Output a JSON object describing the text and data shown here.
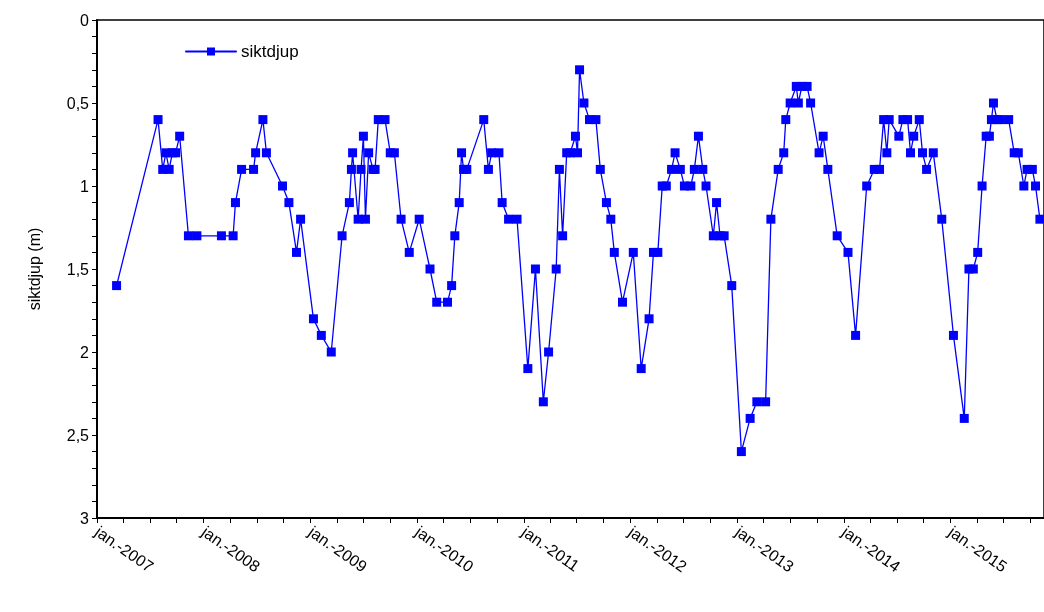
{
  "chart_data": {
    "type": "line",
    "ylabel": "siktdjup (m)",
    "marker": "square",
    "line_style": "solid",
    "grid": false,
    "legend": "top left",
    "xlim": [
      "2007-01-01",
      "2015-11-17"
    ],
    "ylim": [
      3,
      0
    ],
    "xticks": [
      {
        "value": "2007-01-01",
        "label": "jan.-2007"
      },
      {
        "value": "2007-04-01",
        "label": null
      },
      {
        "value": "2007-07-01",
        "label": null
      },
      {
        "value": "2007-10-01",
        "label": null
      },
      {
        "value": "2008-01-01",
        "label": "jan.-2008"
      },
      {
        "value": "2008-04-01",
        "label": null
      },
      {
        "value": "2008-07-01",
        "label": null
      },
      {
        "value": "2008-10-01",
        "label": null
      },
      {
        "value": "2009-01-01",
        "label": "jan.-2009"
      },
      {
        "value": "2009-04-01",
        "label": null
      },
      {
        "value": "2009-07-01",
        "label": null
      },
      {
        "value": "2009-10-01",
        "label": null
      },
      {
        "value": "2010-01-01",
        "label": "jan.-2010"
      },
      {
        "value": "2010-04-01",
        "label": null
      },
      {
        "value": "2010-07-01",
        "label": null
      },
      {
        "value": "2010-10-01",
        "label": null
      },
      {
        "value": "2011-01-01",
        "label": "jan.-2011"
      },
      {
        "value": "2011-04-01",
        "label": null
      },
      {
        "value": "2011-07-01",
        "label": null
      },
      {
        "value": "2011-10-01",
        "label": null
      },
      {
        "value": "2012-01-01",
        "label": "jan.-2012"
      },
      {
        "value": "2012-04-01",
        "label": null
      },
      {
        "value": "2012-07-01",
        "label": null
      },
      {
        "value": "2012-10-01",
        "label": null
      },
      {
        "value": "2013-01-01",
        "label": "jan.-2013"
      },
      {
        "value": "2013-04-01",
        "label": null
      },
      {
        "value": "2013-07-01",
        "label": null
      },
      {
        "value": "2013-10-01",
        "label": null
      },
      {
        "value": "2014-01-01",
        "label": "jan.-2014"
      },
      {
        "value": "2014-04-01",
        "label": null
      },
      {
        "value": "2014-07-01",
        "label": null
      },
      {
        "value": "2014-10-01",
        "label": null
      },
      {
        "value": "2015-01-01",
        "label": "jan.-2015"
      },
      {
        "value": "2015-04-01",
        "label": null
      },
      {
        "value": "2015-07-01",
        "label": null
      },
      {
        "value": "2015-10-01",
        "label": null
      }
    ],
    "yticks": [
      0,
      {
        "value": 0.1,
        "label": null
      },
      {
        "value": 0.2,
        "label": null
      },
      {
        "value": 0.3,
        "label": null
      },
      {
        "value": 0.4,
        "label": null
      },
      {
        "value": 0.5,
        "label": "0,5"
      },
      {
        "value": 0.6,
        "label": null
      },
      {
        "value": 0.7,
        "label": null
      },
      {
        "value": 0.8,
        "label": null
      },
      {
        "value": 0.9,
        "label": null
      },
      1,
      {
        "value": 1.1,
        "label": null
      },
      {
        "value": 1.2,
        "label": null
      },
      {
        "value": 1.3,
        "label": null
      },
      {
        "value": 1.4,
        "label": null
      },
      {
        "value": 1.5,
        "label": "1,5"
      },
      {
        "value": 1.6,
        "label": null
      },
      {
        "value": 1.7,
        "label": null
      },
      {
        "value": 1.8,
        "label": null
      },
      {
        "value": 1.9,
        "label": null
      },
      2,
      {
        "value": 2.1,
        "label": null
      },
      {
        "value": 2.2,
        "label": null
      },
      {
        "value": 2.3,
        "label": null
      },
      {
        "value": 2.4,
        "label": null
      },
      {
        "value": 2.5,
        "label": "2,5"
      },
      {
        "value": 2.6,
        "label": null
      },
      {
        "value": 2.7,
        "label": null
      },
      {
        "value": 2.8,
        "label": null
      },
      {
        "value": 2.9,
        "label": null
      },
      3
    ],
    "series": [
      {
        "name": "siktdjup",
        "color": "#0000ff",
        "x": [
          "2007-03-09",
          "2007-07-29",
          "2007-08-14",
          "2007-08-25",
          "2007-09-05",
          "2007-09-16",
          "2007-09-27",
          "2007-10-11",
          "2007-11-10",
          "2007-12-09",
          "2008-03-02",
          "2008-04-11",
          "2008-04-19",
          "2008-05-10",
          "2008-06-20",
          "2008-06-27",
          "2008-07-22",
          "2008-08-03",
          "2008-09-27",
          "2008-10-19",
          "2008-11-14",
          "2008-11-28",
          "2009-01-11",
          "2009-02-07",
          "2009-03-13",
          "2009-04-19",
          "2009-05-14",
          "2009-05-21",
          "2009-05-25",
          "2009-06-13",
          "2009-06-23",
          "2009-07-01",
          "2009-07-08",
          "2009-07-19",
          "2009-08-03",
          "2009-08-10",
          "2009-08-21",
          "2009-09-13",
          "2009-10-01",
          "2009-10-15",
          "2009-11-07",
          "2009-12-05",
          "2010-01-08",
          "2010-02-14",
          "2010-03-09",
          "2010-04-15",
          "2010-04-29",
          "2010-05-10",
          "2010-05-25",
          "2010-06-02",
          "2010-06-09",
          "2010-06-20",
          "2010-08-17",
          "2010-09-02",
          "2010-09-13",
          "2010-10-08",
          "2010-10-19",
          "2010-11-10",
          "2010-12-09",
          "2011-01-15",
          "2011-02-10",
          "2011-03-09",
          "2011-03-27",
          "2011-04-22",
          "2011-05-03",
          "2011-05-14",
          "2011-05-28",
          "2011-06-09",
          "2011-06-27",
          "2011-07-04",
          "2011-07-11",
          "2011-07-26",
          "2011-08-14",
          "2011-09-05",
          "2011-09-20",
          "2011-10-11",
          "2011-10-26",
          "2011-11-07",
          "2011-12-05",
          "2012-01-11",
          "2012-02-07",
          "2012-03-05",
          "2012-03-20",
          "2012-04-04",
          "2012-04-19",
          "2012-05-03",
          "2012-05-21",
          "2012-06-02",
          "2012-06-20",
          "2012-07-04",
          "2012-07-26",
          "2012-08-07",
          "2012-08-21",
          "2012-09-05",
          "2012-09-16",
          "2012-10-11",
          "2012-10-22",
          "2012-11-03",
          "2012-11-17",
          "2012-12-13",
          "2013-01-15",
          "2013-02-14",
          "2013-03-09",
          "2013-04-08",
          "2013-04-26",
          "2013-05-21",
          "2013-06-09",
          "2013-06-16",
          "2013-07-01",
          "2013-07-22",
          "2013-07-29",
          "2013-08-10",
          "2013-08-28",
          "2013-09-09",
          "2013-10-08",
          "2013-10-22",
          "2013-11-07",
          "2013-12-09",
          "2014-01-15",
          "2014-02-10",
          "2014-03-20",
          "2014-04-15",
          "2014-05-03",
          "2014-05-17",
          "2014-05-28",
          "2014-06-05",
          "2014-07-08",
          "2014-07-22",
          "2014-08-07",
          "2014-08-17",
          "2014-08-28",
          "2014-09-16",
          "2014-09-27",
          "2014-10-11",
          "2014-11-03",
          "2014-12-02",
          "2015-01-11",
          "2015-02-17",
          "2015-03-05",
          "2015-03-20",
          "2015-04-04",
          "2015-04-19",
          "2015-05-03",
          "2015-05-14",
          "2015-05-21",
          "2015-05-28",
          "2015-06-09",
          "2015-06-20",
          "2015-07-19",
          "2015-08-07",
          "2015-08-21",
          "2015-09-09",
          "2015-09-20",
          "2015-10-08",
          "2015-10-19",
          "2015-11-03"
        ],
        "values": [
          1.6,
          0.6,
          0.9,
          0.8,
          0.9,
          0.8,
          0.8,
          0.7,
          1.3,
          1.3,
          1.3,
          1.3,
          1.1,
          0.9,
          0.9,
          0.8,
          0.6,
          0.8,
          1.0,
          1.1,
          1.4,
          1.2,
          1.8,
          1.9,
          2.0,
          1.3,
          1.1,
          0.9,
          0.8,
          1.2,
          0.9,
          0.7,
          1.2,
          0.8,
          0.9,
          0.9,
          0.6,
          0.6,
          0.8,
          0.8,
          1.2,
          1.4,
          1.2,
          1.5,
          1.7,
          1.7,
          1.6,
          1.3,
          1.1,
          0.8,
          0.9,
          0.9,
          0.6,
          0.9,
          0.8,
          0.8,
          1.1,
          1.2,
          1.2,
          2.1,
          1.5,
          2.3,
          2.0,
          1.5,
          0.9,
          1.3,
          0.8,
          0.8,
          0.7,
          0.8,
          0.3,
          0.5,
          0.6,
          0.6,
          0.9,
          1.1,
          1.2,
          1.4,
          1.7,
          1.4,
          2.1,
          1.8,
          1.4,
          1.4,
          1.0,
          1.0,
          0.9,
          0.8,
          0.9,
          1.0,
          1.0,
          0.9,
          0.7,
          0.9,
          1.0,
          1.3,
          1.1,
          1.3,
          1.3,
          1.6,
          2.6,
          2.4,
          2.3,
          2.3,
          1.2,
          0.9,
          0.8,
          0.6,
          0.5,
          0.4,
          0.5,
          0.4,
          0.4,
          0.5,
          0.8,
          0.7,
          0.9,
          1.3,
          1.4,
          1.9,
          1.0,
          0.9,
          0.9,
          0.6,
          0.8,
          0.6,
          0.7,
          0.6,
          0.6,
          0.8,
          0.7,
          0.6,
          0.8,
          0.9,
          0.8,
          1.2,
          1.9,
          2.4,
          1.5,
          1.5,
          1.4,
          1.0,
          0.7,
          0.7,
          0.6,
          0.5,
          0.6,
          0.6,
          0.6,
          0.8,
          0.8,
          1.0,
          0.9,
          0.9,
          1.0,
          1.2
        ]
      }
    ]
  }
}
